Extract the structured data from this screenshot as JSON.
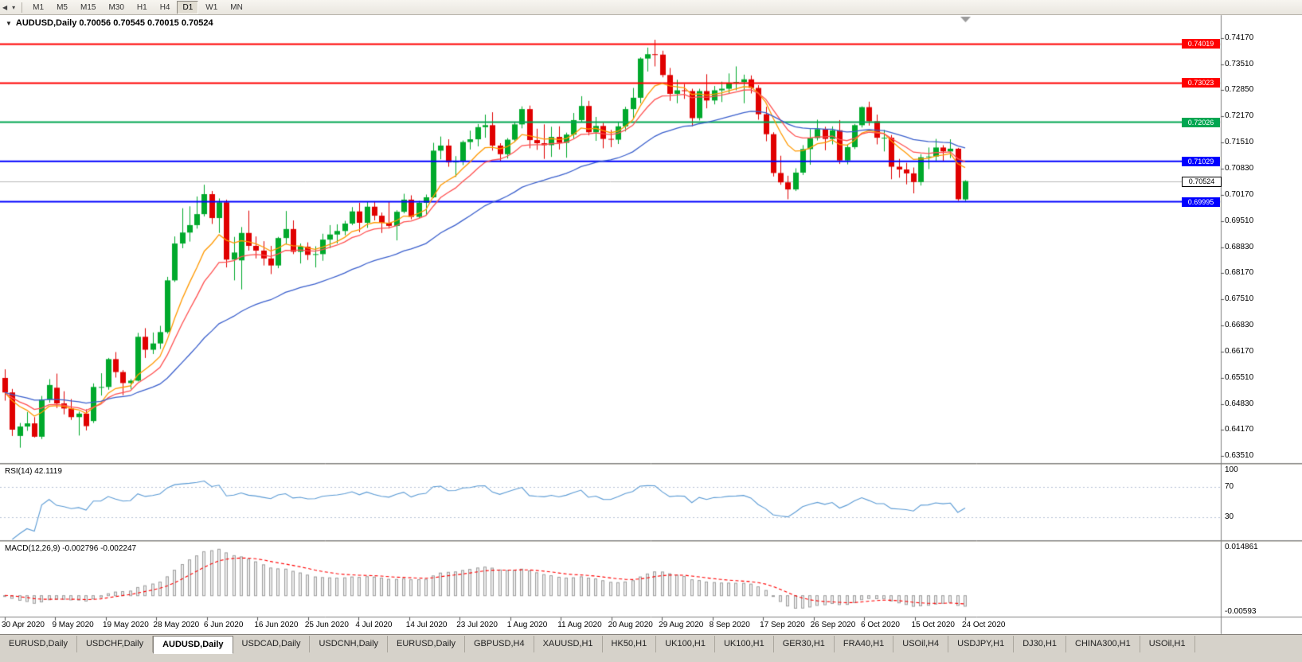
{
  "toolbar": {
    "nav_icons": [
      {
        "name": "chart-nav-left-icon",
        "glyph": "◀"
      },
      {
        "name": "chart-list-dropdown-icon",
        "glyph": "▾"
      }
    ],
    "timeframes": [
      {
        "label": "M1",
        "active": false
      },
      {
        "label": "M5",
        "active": false
      },
      {
        "label": "M15",
        "active": false
      },
      {
        "label": "M30",
        "active": false
      },
      {
        "label": "H1",
        "active": false
      },
      {
        "label": "H4",
        "active": false
      },
      {
        "label": "D1",
        "active": true
      },
      {
        "label": "W1",
        "active": false
      },
      {
        "label": "MN",
        "active": false
      }
    ]
  },
  "chart": {
    "collapse_icon": "▼",
    "header": "AUDUSD,Daily  0.70056 0.70545 0.70015 0.70524"
  },
  "chart_data": {
    "type": "candlestick",
    "symbol": "AUDUSD",
    "period": "Daily",
    "ohlc": {
      "open": 0.70056,
      "high": 0.70545,
      "low": 0.70015,
      "close": 0.70524
    },
    "price_axis": [
      "0.74170",
      "0.73510",
      "0.72850",
      "0.72170",
      "0.71510",
      "0.70830",
      "0.70170",
      "0.69510",
      "0.68830",
      "0.68170",
      "0.67510",
      "0.66830",
      "0.66170",
      "0.65510",
      "0.64830",
      "0.64170",
      "0.63510"
    ],
    "x_dates": [
      "30 Apr 2020",
      "9 May 2020",
      "19 May 2020",
      "28 May 2020",
      "6 Jun 2020",
      "16 Jun 2020",
      "25 Jun 2020",
      "4 Jul 2020",
      "14 Jul 2020",
      "23 Jul 2020",
      "1 Aug 2020",
      "11 Aug 2020",
      "20 Aug 2020",
      "29 Aug 2020",
      "8 Sep 2020",
      "17 Sep 2020",
      "26 Sep 2020",
      "6 Oct 2020",
      "15 Oct 2020",
      "24 Oct 2020"
    ],
    "levels": [
      {
        "value": 0.74019,
        "label": "0.74019",
        "color": "#ff0000"
      },
      {
        "value": 0.73023,
        "label": "0.73023",
        "color": "#ff0000"
      },
      {
        "value": 0.72026,
        "label": "0.72026",
        "color": "#00a651"
      },
      {
        "value": 0.71029,
        "label": "0.71029",
        "color": "#0000ff"
      },
      {
        "value": 0.69995,
        "label": "0.69995",
        "color": "#0000ff"
      }
    ],
    "current_price": {
      "value": 0.70524,
      "label": "0.70524"
    },
    "colors": {
      "up": "#00a92c",
      "down": "#e00000",
      "bid_line": "#b8b8b8"
    },
    "moving_averages": [
      {
        "type": "ema",
        "period": 8,
        "color": "#ff9900"
      },
      {
        "type": "ema",
        "period": 13,
        "color": "#ff5050"
      },
      {
        "type": "ema",
        "period": 34,
        "color": "#3a5fcd"
      }
    ],
    "indicators": {
      "rsi": {
        "label": "RSI(14) 42.1119",
        "period": 14,
        "current": 42.1119,
        "axis": [
          "100",
          "70",
          "30"
        ],
        "levels": [
          70,
          30
        ],
        "color": "#5b9bd5"
      },
      "macd": {
        "label": "MACD(12,26,9) -0.002796 -0.002247",
        "fast": 12,
        "slow": 26,
        "signal_period": 9,
        "current_main": -0.002796,
        "current_signal": -0.002247,
        "axis_top": "0.014861",
        "axis_bottom": "-0.00593",
        "bar_fill": "#ececec",
        "bar_stroke": "#9e9e9e",
        "signal_color": "#ff0000"
      }
    },
    "candles": [
      [
        0.655,
        0.6572,
        0.6492,
        0.6513
      ],
      [
        0.6513,
        0.6522,
        0.6402,
        0.6418
      ],
      [
        0.6402,
        0.6435,
        0.6372,
        0.6426
      ],
      [
        0.6426,
        0.6463,
        0.6415,
        0.6434
      ],
      [
        0.6434,
        0.645,
        0.6398,
        0.64
      ],
      [
        0.64,
        0.6504,
        0.6394,
        0.6495
      ],
      [
        0.6495,
        0.6547,
        0.6487,
        0.6532
      ],
      [
        0.6525,
        0.6561,
        0.6473,
        0.6485
      ],
      [
        0.6485,
        0.6516,
        0.6457,
        0.6472
      ],
      [
        0.6472,
        0.6496,
        0.6443,
        0.645
      ],
      [
        0.645,
        0.6464,
        0.6403,
        0.6459
      ],
      [
        0.6459,
        0.647,
        0.6416,
        0.6427
      ],
      [
        0.644,
        0.6536,
        0.6435,
        0.6527
      ],
      [
        0.6527,
        0.6562,
        0.6505,
        0.6527
      ],
      [
        0.6527,
        0.6601,
        0.652,
        0.6598
      ],
      [
        0.6598,
        0.6616,
        0.6551,
        0.6565
      ],
      [
        0.6565,
        0.657,
        0.6506,
        0.6537
      ],
      [
        0.6537,
        0.6547,
        0.6522,
        0.6543
      ],
      [
        0.6543,
        0.6665,
        0.6541,
        0.6655
      ],
      [
        0.6655,
        0.6677,
        0.6601,
        0.6622
      ],
      [
        0.6622,
        0.6666,
        0.6611,
        0.6638
      ],
      [
        0.6638,
        0.6683,
        0.6624,
        0.6667
      ],
      [
        0.6667,
        0.6808,
        0.6663,
        0.6799
      ],
      [
        0.6799,
        0.6911,
        0.6795,
        0.6893
      ],
      [
        0.6893,
        0.6983,
        0.6881,
        0.6921
      ],
      [
        0.6921,
        0.6988,
        0.6898,
        0.694
      ],
      [
        0.694,
        0.7013,
        0.6931,
        0.6968
      ],
      [
        0.6968,
        0.7043,
        0.6962,
        0.7019
      ],
      [
        0.7019,
        0.7027,
        0.6943,
        0.6958
      ],
      [
        0.6958,
        0.7008,
        0.692,
        0.6998
      ],
      [
        0.6998,
        0.7005,
        0.6832,
        0.6852
      ],
      [
        0.6852,
        0.691,
        0.6799,
        0.687
      ],
      [
        0.685,
        0.6935,
        0.6776,
        0.692
      ],
      [
        0.692,
        0.6977,
        0.6875,
        0.6887
      ],
      [
        0.6887,
        0.6911,
        0.6855,
        0.6875
      ],
      [
        0.6875,
        0.6899,
        0.6837,
        0.6855
      ],
      [
        0.6855,
        0.6887,
        0.6815,
        0.6837
      ],
      [
        0.6837,
        0.691,
        0.683,
        0.6907
      ],
      [
        0.6907,
        0.6976,
        0.6891,
        0.693
      ],
      [
        0.693,
        0.6952,
        0.6866,
        0.6872
      ],
      [
        0.6872,
        0.6893,
        0.6842,
        0.6885
      ],
      [
        0.6885,
        0.6896,
        0.6851,
        0.6864
      ],
      [
        0.6864,
        0.6886,
        0.6832,
        0.6866
      ],
      [
        0.6866,
        0.6918,
        0.6849,
        0.6903
      ],
      [
        0.6903,
        0.694,
        0.6881,
        0.6916
      ],
      [
        0.6916,
        0.6942,
        0.6893,
        0.6925
      ],
      [
        0.6925,
        0.6951,
        0.6914,
        0.6944
      ],
      [
        0.6944,
        0.6986,
        0.694,
        0.6975
      ],
      [
        0.6975,
        0.6997,
        0.6922,
        0.6946
      ],
      [
        0.6946,
        0.6999,
        0.6933,
        0.6987
      ],
      [
        0.6987,
        0.7001,
        0.6952,
        0.6964
      ],
      [
        0.6964,
        0.6972,
        0.692,
        0.6946
      ],
      [
        0.6946,
        0.7,
        0.6931,
        0.6938
      ],
      [
        0.6938,
        0.6978,
        0.6901,
        0.6974
      ],
      [
        0.6974,
        0.702,
        0.697,
        0.7005
      ],
      [
        0.7005,
        0.7016,
        0.6955,
        0.6961
      ],
      [
        0.6961,
        0.7002,
        0.6958,
        0.6997
      ],
      [
        0.6997,
        0.7018,
        0.6965,
        0.7011
      ],
      [
        0.7011,
        0.715,
        0.7009,
        0.713
      ],
      [
        0.713,
        0.7166,
        0.7108,
        0.7143
      ],
      [
        0.7143,
        0.7159,
        0.7089,
        0.71
      ],
      [
        0.71,
        0.7116,
        0.7063,
        0.7103
      ],
      [
        0.7103,
        0.7156,
        0.7093,
        0.7152
      ],
      [
        0.7152,
        0.7181,
        0.7133,
        0.7159
      ],
      [
        0.7159,
        0.7198,
        0.7141,
        0.719
      ],
      [
        0.719,
        0.7222,
        0.7163,
        0.7195
      ],
      [
        0.7195,
        0.7228,
        0.713,
        0.7143
      ],
      [
        0.7143,
        0.7149,
        0.7102,
        0.7121
      ],
      [
        0.7121,
        0.7162,
        0.711,
        0.7158
      ],
      [
        0.7158,
        0.7204,
        0.7152,
        0.7197
      ],
      [
        0.7197,
        0.7243,
        0.7187,
        0.7236
      ],
      [
        0.7236,
        0.7245,
        0.7136,
        0.7157
      ],
      [
        0.7157,
        0.7186,
        0.7132,
        0.7149
      ],
      [
        0.7149,
        0.7197,
        0.7109,
        0.7144
      ],
      [
        0.7144,
        0.7191,
        0.7114,
        0.7165
      ],
      [
        0.7165,
        0.7192,
        0.7133,
        0.715
      ],
      [
        0.715,
        0.7176,
        0.7112,
        0.7171
      ],
      [
        0.7171,
        0.7226,
        0.7161,
        0.7208
      ],
      [
        0.7208,
        0.7269,
        0.7202,
        0.7244
      ],
      [
        0.7244,
        0.7257,
        0.7169,
        0.7177
      ],
      [
        0.7177,
        0.7216,
        0.7155,
        0.7193
      ],
      [
        0.7193,
        0.7201,
        0.7136,
        0.716
      ],
      [
        0.716,
        0.7183,
        0.7139,
        0.7158
      ],
      [
        0.7158,
        0.7203,
        0.7147,
        0.7192
      ],
      [
        0.7192,
        0.7242,
        0.7179,
        0.7236
      ],
      [
        0.7236,
        0.729,
        0.7211,
        0.7265
      ],
      [
        0.7265,
        0.7368,
        0.7251,
        0.7365
      ],
      [
        0.7365,
        0.7393,
        0.7332,
        0.7376
      ],
      [
        0.7376,
        0.7413,
        0.7345,
        0.7375
      ],
      [
        0.7375,
        0.7385,
        0.7317,
        0.7323
      ],
      [
        0.7323,
        0.7341,
        0.7257,
        0.7275
      ],
      [
        0.7275,
        0.7311,
        0.7251,
        0.7284
      ],
      [
        0.7284,
        0.73,
        0.7262,
        0.7282
      ],
      [
        0.7282,
        0.7288,
        0.7192,
        0.7213
      ],
      [
        0.7213,
        0.7288,
        0.7207,
        0.7282
      ],
      [
        0.7282,
        0.7325,
        0.7238,
        0.7258
      ],
      [
        0.7258,
        0.7295,
        0.7248,
        0.7284
      ],
      [
        0.7284,
        0.7306,
        0.7254,
        0.7288
      ],
      [
        0.7288,
        0.7327,
        0.7277,
        0.7302
      ],
      [
        0.7302,
        0.7345,
        0.7284,
        0.7305
      ],
      [
        0.7305,
        0.7324,
        0.7251,
        0.7312
      ],
      [
        0.7312,
        0.7322,
        0.7276,
        0.729
      ],
      [
        0.729,
        0.7297,
        0.7209,
        0.7223
      ],
      [
        0.7223,
        0.7242,
        0.7154,
        0.7172
      ],
      [
        0.7172,
        0.7177,
        0.7064,
        0.7073
      ],
      [
        0.7073,
        0.7117,
        0.7043,
        0.7049
      ],
      [
        0.7049,
        0.7066,
        0.7006,
        0.7031
      ],
      [
        0.7031,
        0.7085,
        0.7027,
        0.7074
      ],
      [
        0.7074,
        0.7144,
        0.7068,
        0.7134
      ],
      [
        0.7134,
        0.7185,
        0.7094,
        0.7162
      ],
      [
        0.7162,
        0.7209,
        0.7156,
        0.7185
      ],
      [
        0.7185,
        0.7191,
        0.7131,
        0.716
      ],
      [
        0.716,
        0.7192,
        0.7146,
        0.7182
      ],
      [
        0.7182,
        0.7208,
        0.7096,
        0.7105
      ],
      [
        0.7105,
        0.7145,
        0.7095,
        0.7139
      ],
      [
        0.7139,
        0.7198,
        0.7134,
        0.7195
      ],
      [
        0.7195,
        0.7243,
        0.7189,
        0.7241
      ],
      [
        0.7241,
        0.7255,
        0.7194,
        0.7205
      ],
      [
        0.7205,
        0.7222,
        0.7146,
        0.7163
      ],
      [
        0.7163,
        0.7183,
        0.7128,
        0.7163
      ],
      [
        0.7163,
        0.717,
        0.7057,
        0.7089
      ],
      [
        0.7089,
        0.7109,
        0.7061,
        0.7082
      ],
      [
        0.7082,
        0.7099,
        0.7044,
        0.7072
      ],
      [
        0.7072,
        0.7087,
        0.7021,
        0.705
      ],
      [
        0.705,
        0.7121,
        0.7041,
        0.7113
      ],
      [
        0.7113,
        0.7138,
        0.7083,
        0.7115
      ],
      [
        0.7115,
        0.716,
        0.7103,
        0.7138
      ],
      [
        0.7138,
        0.7144,
        0.7103,
        0.7128
      ],
      [
        0.7128,
        0.7159,
        0.7111,
        0.7135
      ],
      [
        0.7135,
        0.7137,
        0.7002,
        0.7006
      ],
      [
        0.70056,
        0.70545,
        0.70015,
        0.70524
      ]
    ]
  },
  "tabs": [
    {
      "label": "EURUSD,Daily",
      "active": false
    },
    {
      "label": "USDCHF,Daily",
      "active": false
    },
    {
      "label": "AUDUSD,Daily",
      "active": true
    },
    {
      "label": "USDCAD,Daily",
      "active": false
    },
    {
      "label": "USDCNH,Daily",
      "active": false
    },
    {
      "label": "EURUSD,Daily",
      "active": false
    },
    {
      "label": "GBPUSD,H4",
      "active": false
    },
    {
      "label": "XAUUSD,H1",
      "active": false
    },
    {
      "label": "HK50,H1",
      "active": false
    },
    {
      "label": "UK100,H1",
      "active": false
    },
    {
      "label": "UK100,H1",
      "active": false
    },
    {
      "label": "GER30,H1",
      "active": false
    },
    {
      "label": "FRA40,H1",
      "active": false
    },
    {
      "label": "USOil,H4",
      "active": false
    },
    {
      "label": "USDJPY,H1",
      "active": false
    },
    {
      "label": "DJ30,H1",
      "active": false
    },
    {
      "label": "CHINA300,H1",
      "active": false
    },
    {
      "label": "USOil,H1",
      "active": false
    }
  ]
}
